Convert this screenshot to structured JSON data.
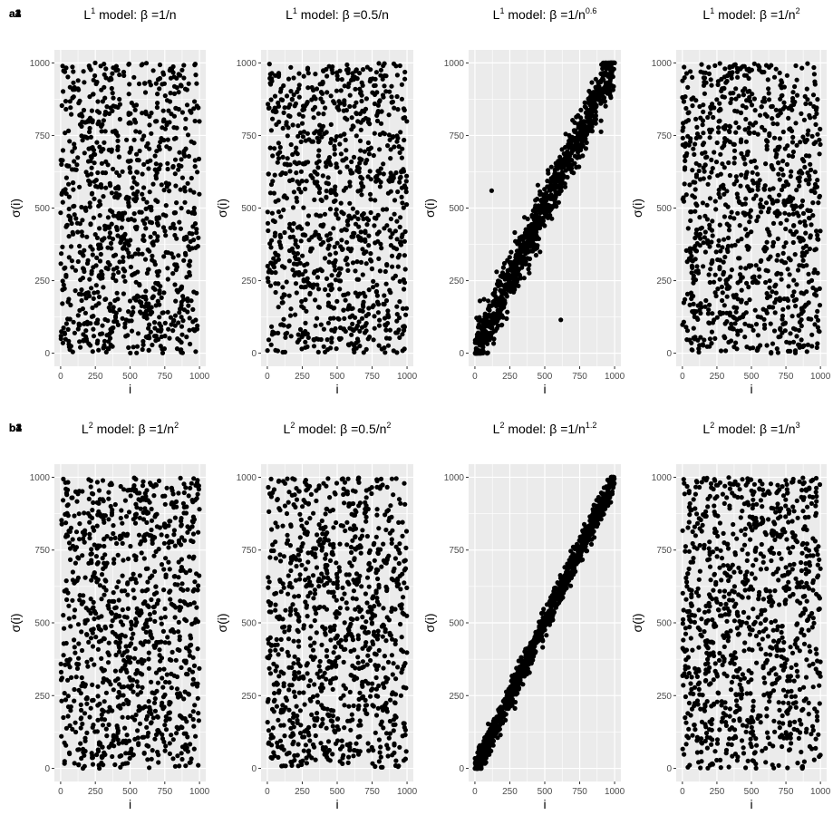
{
  "figure": {
    "panels": [
      {
        "id": "a1",
        "title_base": "L",
        "title_exp": "1",
        "title_mid": " model: β =1/n",
        "title_exp2": ""
      },
      {
        "id": "a2",
        "title_base": "L",
        "title_exp": "1",
        "title_mid": " model: β =0.5/n",
        "title_exp2": ""
      },
      {
        "id": "a3",
        "title_base": "L",
        "title_exp": "1",
        "title_mid": " model: β =1/n",
        "title_exp2": "0.6"
      },
      {
        "id": "a4",
        "title_base": "L",
        "title_exp": "1",
        "title_mid": " model: β =1/n",
        "title_exp2": "2"
      },
      {
        "id": "b1",
        "title_base": "L",
        "title_exp": "2",
        "title_mid": " model: β =1/n",
        "title_exp2": "2"
      },
      {
        "id": "b2",
        "title_base": "L",
        "title_exp": "2",
        "title_mid": " model: β =0.5/n",
        "title_exp2": "2"
      },
      {
        "id": "b3",
        "title_base": "L",
        "title_exp": "2",
        "title_mid": " model: β =1/n",
        "title_exp2": "1.2"
      },
      {
        "id": "b4",
        "title_base": "L",
        "title_exp": "2",
        "title_mid": " model: β =1/n",
        "title_exp2": "3"
      }
    ],
    "xlabel": "i",
    "ylabel": "σ(i)",
    "xticks": [
      "0",
      "250",
      "500",
      "750",
      "1000"
    ],
    "yticks": [
      "0",
      "250",
      "500",
      "750",
      "1000"
    ]
  },
  "chart_data": [
    {
      "type": "scatter",
      "panel": "a1",
      "n_points": 1000,
      "pattern": "uniform-random",
      "xlim": [
        0,
        1000
      ],
      "ylim": [
        0,
        1000
      ],
      "grid": true,
      "point_color": "#000000",
      "background": "#ebebeb"
    },
    {
      "type": "scatter",
      "panel": "a2",
      "n_points": 1000,
      "pattern": "uniform-random",
      "xlim": [
        0,
        1000
      ],
      "ylim": [
        0,
        1000
      ],
      "grid": true,
      "point_color": "#000000",
      "background": "#ebebeb"
    },
    {
      "type": "scatter",
      "panel": "a3",
      "n_points": 1000,
      "pattern": "near-diagonal",
      "spread": 45,
      "outliers": [
        [
          120,
          560
        ],
        [
          615,
          115
        ]
      ],
      "xlim": [
        0,
        1000
      ],
      "ylim": [
        0,
        1000
      ],
      "grid": true,
      "point_color": "#000000",
      "background": "#ebebeb"
    },
    {
      "type": "scatter",
      "panel": "a4",
      "n_points": 1000,
      "pattern": "uniform-random",
      "xlim": [
        0,
        1000
      ],
      "ylim": [
        0,
        1000
      ],
      "grid": true,
      "point_color": "#000000",
      "background": "#ebebeb"
    },
    {
      "type": "scatter",
      "panel": "b1",
      "n_points": 1000,
      "pattern": "uniform-random",
      "xlim": [
        0,
        1000
      ],
      "ylim": [
        0,
        1000
      ],
      "grid": true,
      "point_color": "#000000",
      "background": "#ebebeb"
    },
    {
      "type": "scatter",
      "panel": "b2",
      "n_points": 1000,
      "pattern": "uniform-random",
      "xlim": [
        0,
        1000
      ],
      "ylim": [
        0,
        1000
      ],
      "grid": true,
      "point_color": "#000000",
      "background": "#ebebeb"
    },
    {
      "type": "scatter",
      "panel": "b3",
      "n_points": 1000,
      "pattern": "near-diagonal",
      "spread": 25,
      "outliers": [],
      "xlim": [
        0,
        1000
      ],
      "ylim": [
        0,
        1000
      ],
      "grid": true,
      "point_color": "#000000",
      "background": "#ebebeb"
    },
    {
      "type": "scatter",
      "panel": "b4",
      "n_points": 1000,
      "pattern": "uniform-random",
      "xlim": [
        0,
        1000
      ],
      "ylim": [
        0,
        1000
      ],
      "grid": true,
      "point_color": "#000000",
      "background": "#ebebeb"
    }
  ]
}
